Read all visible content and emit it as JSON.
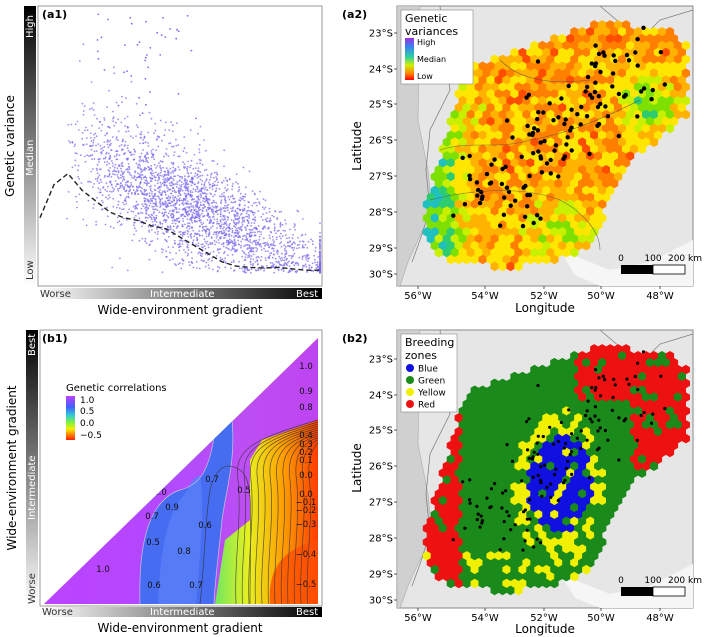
{
  "panels": {
    "a1": {
      "label": "(a1)"
    },
    "a2": {
      "label": "(a2)"
    },
    "b1": {
      "label": "(b1)"
    },
    "b2": {
      "label": "(b2)"
    }
  },
  "chart_data": [
    {
      "id": "a1",
      "type": "scatter",
      "title": "",
      "xlabel": "Wide-environment gradient",
      "ylabel": "Genetic variance",
      "x_ticks": [
        "Worse",
        "Intermediate",
        "Best"
      ],
      "y_ticks": [
        "Low",
        "Median",
        "High"
      ],
      "point_color": "#7b6cf0",
      "xlim": [
        0,
        1
      ],
      "ylim": [
        0,
        1
      ],
      "trend_x": [
        0.0,
        0.05,
        0.1,
        0.15,
        0.2,
        0.25,
        0.3,
        0.35,
        0.4,
        0.45,
        0.5,
        0.55,
        0.6,
        0.65,
        0.7,
        0.75,
        0.8,
        0.85,
        0.9,
        0.95,
        1.0
      ],
      "trend_y": [
        0.24,
        0.36,
        0.4,
        0.34,
        0.3,
        0.26,
        0.24,
        0.23,
        0.21,
        0.2,
        0.17,
        0.14,
        0.11,
        0.08,
        0.065,
        0.06,
        0.058,
        0.06,
        0.055,
        0.05,
        0.05
      ]
    },
    {
      "id": "a2",
      "type": "heatmap",
      "xlabel": "Longitude",
      "ylabel": "Latitude",
      "x_ticks": [
        "56°W",
        "54°W",
        "52°W",
        "50°W",
        "48°W"
      ],
      "y_ticks": [
        "23°S",
        "24°S",
        "25°S",
        "26°S",
        "27°S",
        "28°S",
        "29°S",
        "30°S"
      ],
      "legend_title": "Genetic variances",
      "legend_title_lines": [
        "Genetic",
        "variances"
      ],
      "legend_labels": [
        "High",
        "Median",
        "Low"
      ],
      "legend_placement": "top-left",
      "scalebar_labels": [
        "0",
        "100",
        "200 km"
      ],
      "colors": [
        "#ff0000",
        "#ff4d00",
        "#ff8000",
        "#ffb300",
        "#ffe600",
        "#c8f000",
        "#7de000",
        "#2ecc71",
        "#20c0c0",
        "#3a8fe8",
        "#5a5ae8",
        "#b030d8"
      ]
    },
    {
      "id": "b1",
      "type": "heatmap",
      "xlabel": "Wide-environment gradient",
      "ylabel": "Wide-environment gradient",
      "x_ticks": [
        "Worse",
        "Intermediate",
        "Best"
      ],
      "y_ticks": [
        "Worse",
        "Intermediate",
        "Best"
      ],
      "legend_title": "Genetic correlations",
      "legend_labels": [
        "1.0",
        "0.5",
        "0.0",
        "−0.5"
      ],
      "legend_placement": "upper-left",
      "contour_labels": [
        "1.0",
        "0.9",
        "0.8",
        "0.4",
        "0.3",
        "0.2",
        "0.1",
        "0.0",
        "0.0",
        "−0.1",
        "−0.2",
        "−0.3",
        "−0.4",
        "−0.5",
        "1.0",
        "0.9",
        "0.7",
        "0.6",
        "0.5",
        "0.7",
        "0.5",
        "0.8",
        "0.6",
        "0.7",
        "1.0"
      ]
    },
    {
      "id": "b2",
      "type": "heatmap",
      "xlabel": "Longitude",
      "ylabel": "Latitude",
      "x_ticks": [
        "56°W",
        "54°W",
        "52°W",
        "50°W",
        "48°W"
      ],
      "y_ticks": [
        "23°S",
        "24°S",
        "25°S",
        "26°S",
        "27°S",
        "28°S",
        "29°S",
        "30°S"
      ],
      "legend_title": "Breeding zones",
      "legend_title_lines": [
        "Breeding",
        "zones"
      ],
      "legend_placement": "top-left",
      "categories": [
        "Blue",
        "Green",
        "Yellow",
        "Red"
      ],
      "category_colors": [
        "#1010e0",
        "#1a8a1a",
        "#f0f000",
        "#ee1111"
      ],
      "scalebar_labels": [
        "0",
        "100",
        "200 km"
      ]
    }
  ]
}
